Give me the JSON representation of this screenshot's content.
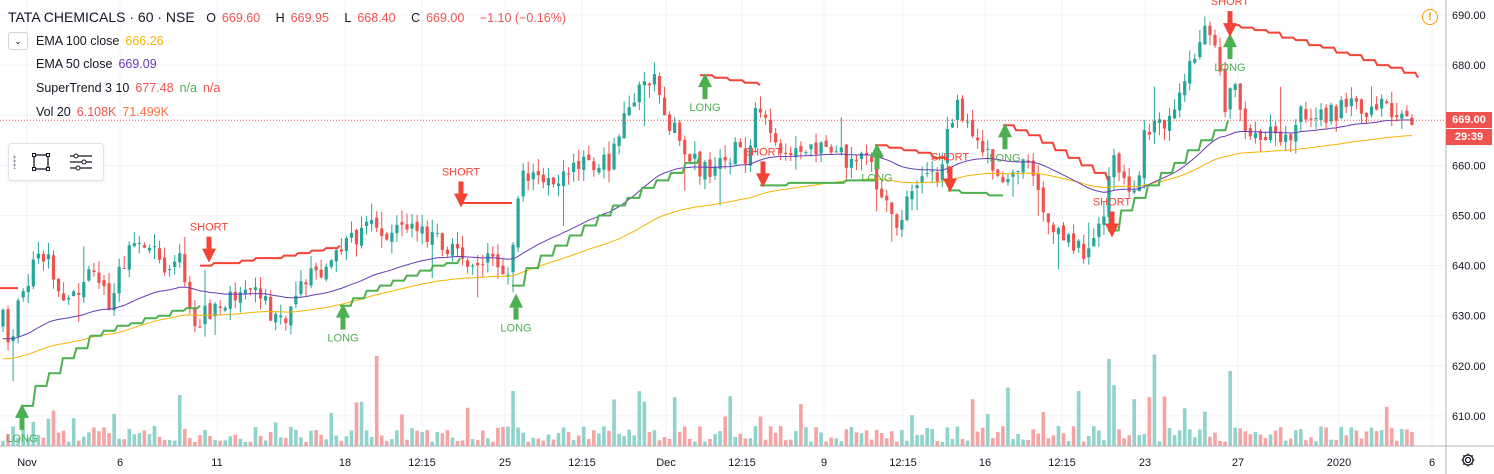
{
  "header": {
    "symbol": "TATA CHEMICALS · 60 · NSE",
    "open_label": "O",
    "open": "669.60",
    "high_label": "H",
    "high": "669.95",
    "low_label": "L",
    "low": "668.40",
    "close_label": "C",
    "close": "669.00",
    "change": "−1.10 (−0.16%)",
    "alert_glyph": "!"
  },
  "indicators": [
    {
      "name": "EMA 100 close",
      "v1": "666.26",
      "v2": "",
      "v3": "",
      "color": "#f5b300"
    },
    {
      "name": "EMA 50 close",
      "v1": "669.09",
      "v2": "",
      "v3": "",
      "color": "#673ab7"
    },
    {
      "name": "SuperTrend 3 10",
      "v1": "677.48",
      "v2": "n/a",
      "v3": "n/a",
      "color": "#ef5350"
    },
    {
      "name": "Vol 20",
      "v1": "6.108K",
      "v2": "71.499K",
      "v3": "",
      "color": "#ef5350"
    }
  ],
  "price_tags": {
    "last_price": "669.00",
    "countdown": "29:39"
  },
  "colors": {
    "up": "#26a69a",
    "down": "#ef5350",
    "vol_up": "#8fd3cc",
    "vol_down": "#f5a3a3",
    "ema100": "#f5b300",
    "ema50": "#673ab7",
    "st_up": "#4caf50",
    "st_down": "#f44336",
    "grid": "#f0f3fa",
    "axis_text": "#131722"
  },
  "icons": [
    "chevron-down-icon",
    "rectangle-tool-icon",
    "object-tree-icon",
    "alert-icon",
    "gear-icon"
  ],
  "chart_data": {
    "type": "candlestick",
    "y_axis": {
      "min": 604,
      "max": 693,
      "ticks": [
        610,
        620,
        630,
        640,
        650,
        660,
        670,
        680,
        690
      ]
    },
    "x_ticks": [
      "Nov",
      "6",
      "11",
      "18",
      "12:15",
      "25",
      "12:15",
      "Dec",
      "12:15",
      "9",
      "12:15",
      "16",
      "12:15",
      "23",
      "27",
      "2020",
      "6"
    ],
    "series": [
      {
        "name": "EMA 100 close",
        "last": 666.26
      },
      {
        "name": "EMA 50 close",
        "last": 669.09
      },
      {
        "name": "SuperTrend 3 10",
        "last": 677.48
      }
    ],
    "signals": [
      {
        "type": "LONG",
        "label": "LONG"
      },
      {
        "type": "SHORT",
        "label": "SHORT"
      },
      {
        "type": "LONG",
        "label": "LONG"
      },
      {
        "type": "SHORT",
        "label": "SHORT"
      },
      {
        "type": "LONG",
        "label": "LONG"
      },
      {
        "type": "LONG",
        "label": "LONG"
      },
      {
        "type": "SHORT",
        "label": "SHORT"
      },
      {
        "type": "LONG",
        "label": "LONG"
      },
      {
        "type": "SHORT",
        "label": "SHORT"
      },
      {
        "type": "LONG",
        "label": "LONG"
      },
      {
        "type": "SHORT",
        "label": "SHORT"
      },
      {
        "type": "LONG",
        "label": "LONG"
      },
      {
        "type": "SHORT",
        "label": "SHORT"
      }
    ],
    "anchors": [
      [
        0,
        626
      ],
      [
        8,
        631
      ],
      [
        14,
        624
      ],
      [
        28,
        635
      ],
      [
        42,
        642
      ],
      [
        56,
        640
      ],
      [
        70,
        631
      ],
      [
        84,
        635
      ],
      [
        100,
        641
      ],
      [
        115,
        630
      ],
      [
        128,
        641
      ],
      [
        140,
        645
      ],
      [
        158,
        643
      ],
      [
        170,
        638
      ],
      [
        186,
        641
      ],
      [
        200,
        629
      ],
      [
        220,
        632
      ],
      [
        240,
        634
      ],
      [
        255,
        636
      ],
      [
        270,
        633
      ],
      [
        282,
        628
      ],
      [
        300,
        633
      ],
      [
        315,
        638
      ],
      [
        330,
        640
      ],
      [
        345,
        644
      ],
      [
        360,
        646
      ],
      [
        375,
        648
      ],
      [
        395,
        646
      ],
      [
        410,
        648
      ],
      [
        425,
        647
      ],
      [
        440,
        645
      ],
      [
        455,
        643
      ],
      [
        470,
        640
      ],
      [
        485,
        642
      ],
      [
        500,
        640
      ],
      [
        512,
        639
      ],
      [
        520,
        648
      ],
      [
        528,
        660
      ],
      [
        545,
        656
      ],
      [
        560,
        658
      ],
      [
        580,
        660
      ],
      [
        600,
        661
      ],
      [
        615,
        660
      ],
      [
        625,
        668
      ],
      [
        635,
        671
      ],
      [
        648,
        676
      ],
      [
        660,
        678
      ],
      [
        668,
        670
      ],
      [
        680,
        667
      ],
      [
        695,
        662
      ],
      [
        705,
        659
      ],
      [
        720,
        660
      ],
      [
        740,
        663
      ],
      [
        752,
        661
      ],
      [
        762,
        674
      ],
      [
        772,
        668
      ],
      [
        790,
        662
      ],
      [
        810,
        664
      ],
      [
        825,
        664
      ],
      [
        840,
        664
      ],
      [
        852,
        660
      ],
      [
        866,
        663
      ],
      [
        880,
        658
      ],
      [
        892,
        651
      ],
      [
        905,
        648
      ],
      [
        918,
        656
      ],
      [
        932,
        660
      ],
      [
        945,
        658
      ],
      [
        952,
        666
      ],
      [
        962,
        672
      ],
      [
        975,
        666
      ],
      [
        990,
        662
      ],
      [
        1000,
        660
      ],
      [
        1012,
        656
      ],
      [
        1025,
        661
      ],
      [
        1040,
        658
      ],
      [
        1052,
        650
      ],
      [
        1065,
        646
      ],
      [
        1078,
        645
      ],
      [
        1090,
        642
      ],
      [
        1100,
        648
      ],
      [
        1108,
        650
      ],
      [
        1118,
        661
      ],
      [
        1130,
        656
      ],
      [
        1140,
        653
      ],
      [
        1148,
        665
      ],
      [
        1160,
        667
      ],
      [
        1175,
        670
      ],
      [
        1190,
        678
      ],
      [
        1200,
        682
      ],
      [
        1210,
        686
      ],
      [
        1220,
        682
      ],
      [
        1230,
        672
      ],
      [
        1240,
        676
      ],
      [
        1250,
        668
      ],
      [
        1262,
        667
      ],
      [
        1275,
        666
      ],
      [
        1290,
        665
      ],
      [
        1305,
        670
      ],
      [
        1320,
        669
      ],
      [
        1335,
        670
      ],
      [
        1350,
        672
      ],
      [
        1365,
        671
      ],
      [
        1380,
        672
      ],
      [
        1395,
        671
      ],
      [
        1405,
        671
      ],
      [
        1416,
        669
      ]
    ]
  }
}
